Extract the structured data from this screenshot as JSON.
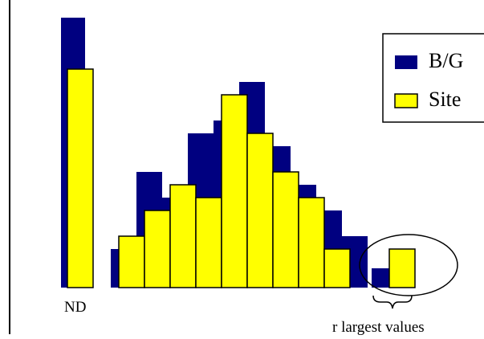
{
  "chart_data": {
    "type": "bar",
    "title": "",
    "xlabel": "",
    "ylabel": "",
    "ylim": [
      0,
      336
    ],
    "grid": false,
    "legend": {
      "position": "top-right",
      "entries": [
        {
          "label": "B/G",
          "color": "#000080"
        },
        {
          "label": "Site",
          "color": "#ffff00"
        }
      ]
    },
    "series": [
      {
        "name": "B/G",
        "color": "#000080",
        "values": [
          336,
          48,
          144,
          112,
          192,
          208,
          256,
          176,
          128,
          96,
          64,
          24
        ]
      },
      {
        "name": "Site",
        "color": "#ffff00",
        "values": [
          272,
          64,
          96,
          128,
          112,
          240,
          192,
          144,
          112,
          48,
          48
        ]
      }
    ],
    "annotations": {
      "nd_label": "ND",
      "tail_label": "r largest values"
    }
  }
}
